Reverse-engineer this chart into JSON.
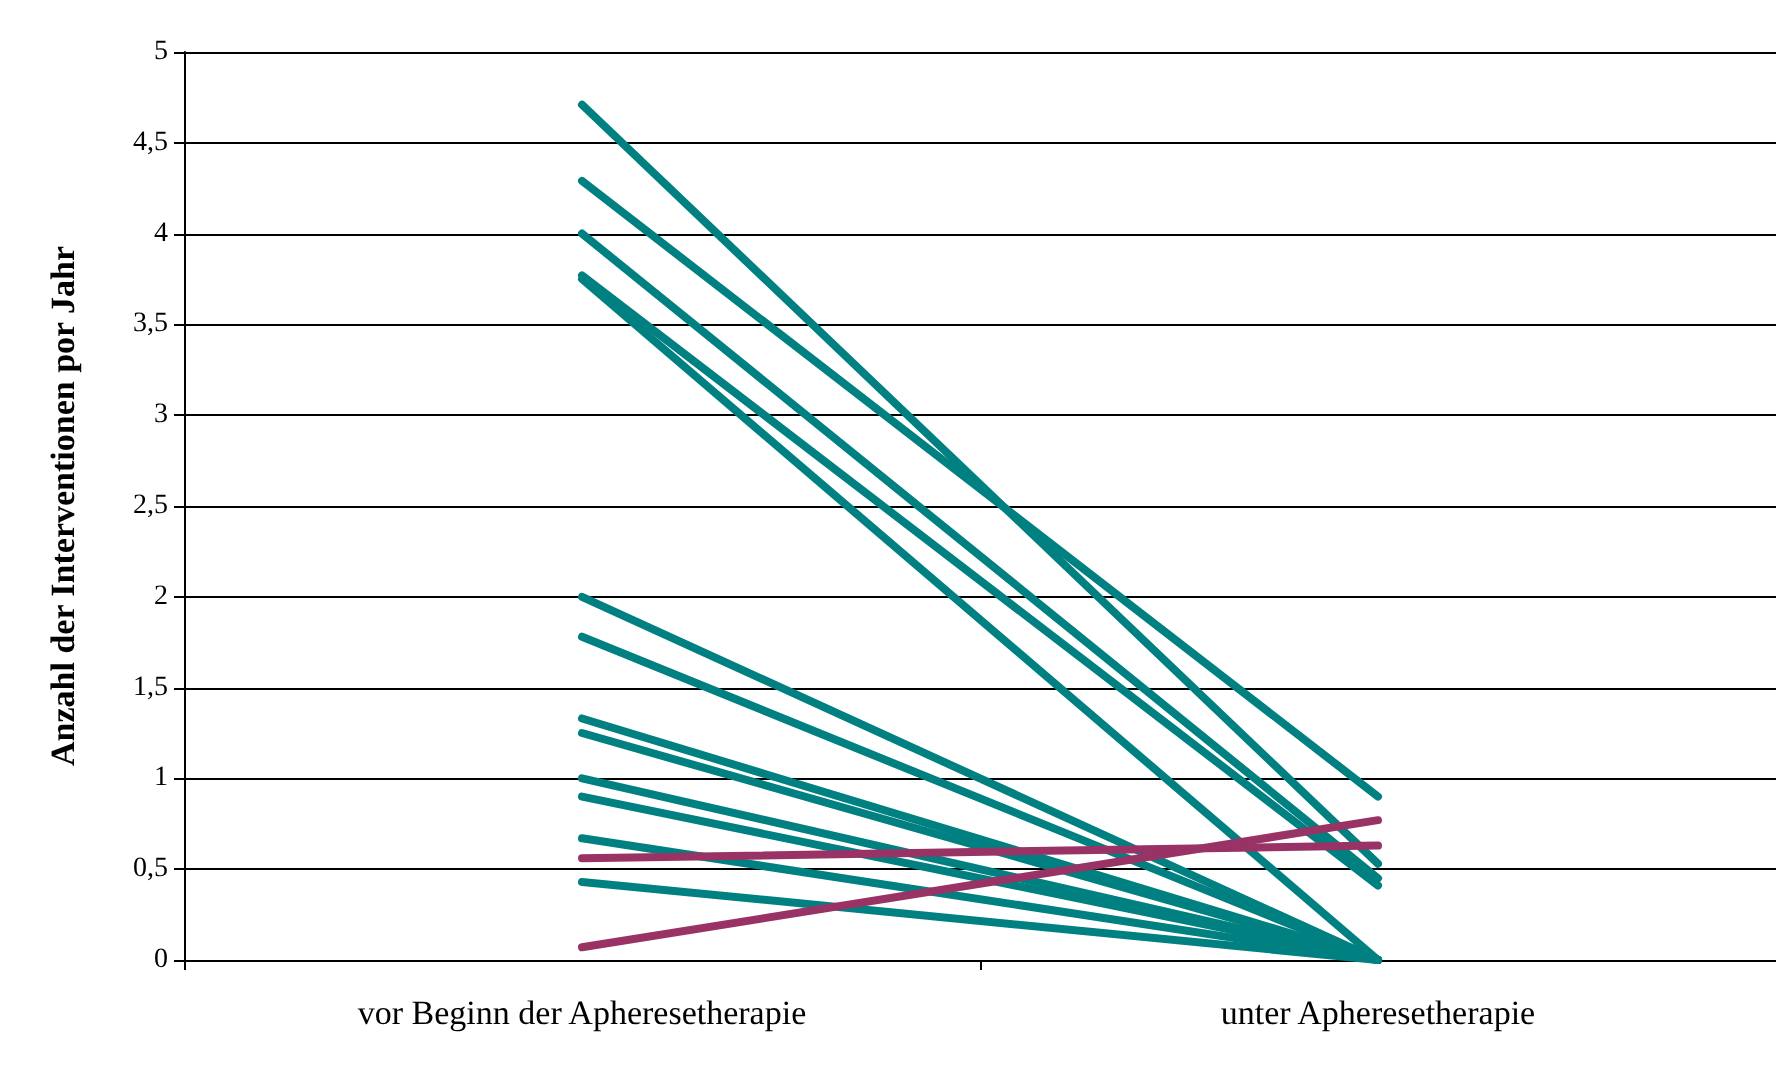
{
  "chart_data": {
    "type": "line",
    "ylabel": "Anzahl der Interventionen por Jahr",
    "categories": [
      "vor Beginn der Apheresetherapie",
      "unter Apheresetherapie"
    ],
    "ylim": [
      0,
      5
    ],
    "yticks": [
      0,
      {
        "value": 0.5,
        "label": "0,5"
      },
      1,
      {
        "value": 1.5,
        "label": "1,5"
      },
      2,
      {
        "value": 2.5,
        "label": "2,5"
      },
      3,
      {
        "value": 3.5,
        "label": "3,5"
      },
      4,
      {
        "value": 4.5,
        "label": "4,5"
      },
      5
    ],
    "grid": "y",
    "marker": "none",
    "line_style": "solid",
    "series": [
      {
        "color": "#008080",
        "values": [
          4.71,
          0.53
        ]
      },
      {
        "color": "#008080",
        "values": [
          4.29,
          0.9
        ]
      },
      {
        "color": "#008080",
        "values": [
          4.0,
          0.45
        ]
      },
      {
        "color": "#008080",
        "values": [
          3.77,
          0.41
        ]
      },
      {
        "color": "#008080",
        "values": [
          3.75,
          0
        ]
      },
      {
        "color": "#008080",
        "values": [
          2.0,
          0
        ]
      },
      {
        "color": "#008080",
        "values": [
          1.78,
          0
        ]
      },
      {
        "color": "#008080",
        "values": [
          1.33,
          0
        ]
      },
      {
        "color": "#008080",
        "values": [
          1.25,
          0
        ]
      },
      {
        "color": "#008080",
        "values": [
          1.0,
          0
        ]
      },
      {
        "color": "#008080",
        "values": [
          0.9,
          0
        ]
      },
      {
        "color": "#008080",
        "values": [
          0.67,
          0
        ]
      },
      {
        "color": "#008080",
        "values": [
          0.43,
          0
        ]
      },
      {
        "color": "#993366",
        "values": [
          0.56,
          0.63
        ]
      },
      {
        "color": "#993366",
        "values": [
          0.07,
          0.77
        ]
      }
    ]
  }
}
